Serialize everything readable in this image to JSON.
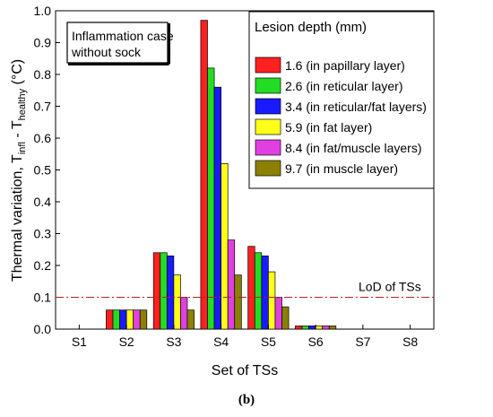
{
  "chart_data": {
    "type": "bar",
    "categories": [
      "S1",
      "S2",
      "S3",
      "S4",
      "S5",
      "S6",
      "S7",
      "S8"
    ],
    "series": [
      {
        "name": "1.6 (in papillary layer)",
        "color": "#ff2020",
        "values": [
          0,
          0.06,
          0.24,
          0.97,
          0.26,
          0.01,
          0,
          0
        ]
      },
      {
        "name": "2.6 (in reticular layer)",
        "color": "#22dd22",
        "values": [
          0,
          0.06,
          0.24,
          0.82,
          0.24,
          0.01,
          0,
          0
        ]
      },
      {
        "name": "3.4 (in reticular/fat layers)",
        "color": "#1a1aff",
        "values": [
          0,
          0.06,
          0.23,
          0.76,
          0.23,
          0.01,
          0,
          0
        ]
      },
      {
        "name": "5.9 (in fat layer)",
        "color": "#ffff1a",
        "values": [
          0,
          0.06,
          0.17,
          0.52,
          0.18,
          0.01,
          0,
          0
        ]
      },
      {
        "name": "8.4 (in fat/muscle layers)",
        "color": "#e040e0",
        "values": [
          0,
          0.06,
          0.1,
          0.28,
          0.1,
          0.01,
          0,
          0
        ]
      },
      {
        "name": "9.7 (in muscle layer)",
        "color": "#8b8000",
        "values": [
          0,
          0.06,
          0.06,
          0.17,
          0.07,
          0.01,
          0,
          0
        ]
      }
    ],
    "ylim": [
      0,
      1.0
    ],
    "yticks": [
      "0.0",
      "0.1",
      "0.2",
      "0.3",
      "0.4",
      "0.5",
      "0.6",
      "0.7",
      "0.8",
      "0.9",
      "1.0"
    ],
    "xlabel": "Set of TSs",
    "ylabel_main": "Thermal variation, T",
    "ylabel_sub1": "infl",
    "ylabel_mid": " - T",
    "ylabel_sub2": "healthy",
    "ylabel_unit": " (°C)",
    "annotation": "Inflammation case\nwithout sock",
    "legend_title": "Lesion depth (mm)",
    "legend_position": "top-right",
    "reference_line": {
      "label": "LoD of TSs",
      "value": 0.1,
      "color": "#b22222"
    },
    "grid": false
  },
  "caption": "(b)"
}
